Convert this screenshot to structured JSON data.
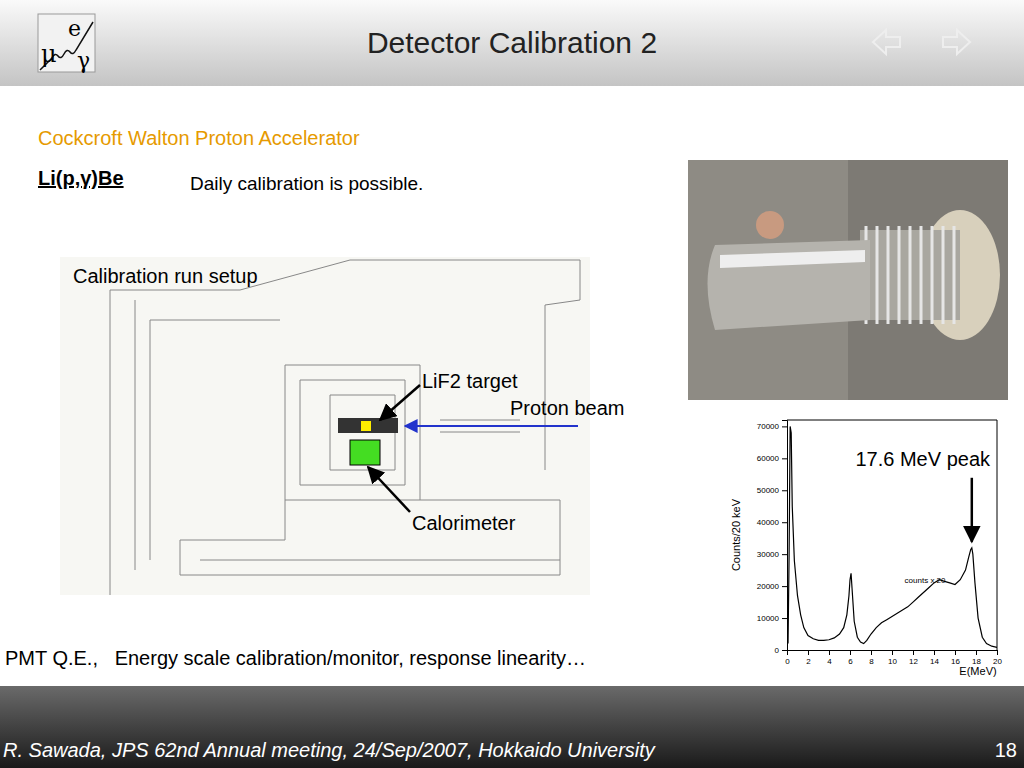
{
  "header": {
    "logo": [
      "μ",
      "e",
      "γ"
    ],
    "title": "Detector Calibration 2"
  },
  "subtitle": "Cockcroft Walton Proton Accelerator",
  "reaction": "Li(p,γ)Be",
  "note": "Daily calibration is possible.",
  "diagram": {
    "title": "Calibration run setup",
    "target": "LiF2 target",
    "beam": "Proton beam",
    "calorimeter": "Calorimeter"
  },
  "chart_data": {
    "type": "line",
    "color": "#000000",
    "x": [
      0.1,
      0.2,
      0.3,
      0.4,
      0.5,
      0.7,
      1.0,
      1.3,
      1.6,
      2.0,
      2.5,
      3.0,
      3.5,
      4.0,
      4.5,
      5.0,
      5.4,
      5.7,
      5.9,
      6.0,
      6.1,
      6.2,
      6.4,
      6.7,
      7.0,
      7.3,
      7.6,
      8.0,
      8.5,
      9.0,
      9.5,
      10.0,
      10.5,
      11.0,
      11.5,
      12.0,
      12.5,
      13.0,
      13.5,
      14.0,
      14.5,
      15.0,
      15.5,
      16.0,
      16.5,
      17.0,
      17.3,
      17.5,
      17.6,
      17.7,
      17.9,
      18.2,
      18.6,
      19.0,
      19.5,
      20.0
    ],
    "values": [
      2000,
      30000,
      70000,
      68000,
      45000,
      28000,
      17000,
      11000,
      7000,
      4500,
      3500,
      3000,
      3000,
      3200,
      3800,
      5000,
      7000,
      11000,
      17000,
      22000,
      24000,
      19000,
      9000,
      4000,
      2500,
      2000,
      3000,
      5000,
      7000,
      8500,
      9500,
      10500,
      11500,
      12500,
      13500,
      15000,
      16500,
      18000,
      19500,
      21000,
      22000,
      21500,
      21000,
      20500,
      22000,
      25000,
      29000,
      31500,
      32000,
      30000,
      21000,
      10000,
      4000,
      2000,
      1200,
      800
    ],
    "xlim": [
      0,
      20
    ],
    "xticks": [
      0,
      2,
      4,
      6,
      8,
      10,
      12,
      14,
      16,
      18,
      20
    ],
    "ylim": [
      0,
      72000
    ],
    "yticks": [
      0,
      10000,
      20000,
      30000,
      40000,
      50000,
      60000,
      70000
    ],
    "x_label": "E(MeV)",
    "y_label": "Counts/20 keV",
    "annotations": [
      {
        "text": "17.6 MeV peak",
        "x": 17.6,
        "y": 32000
      },
      {
        "text": "counts x 20",
        "x": 11.2,
        "y": 21000
      }
    ]
  },
  "bottom_text": "PMT Q.E.,   Energy scale calibration/monitor, response linearity…",
  "footer": {
    "citation": "R. Sawada, JPS 62nd Annual meeting, 24/Sep/2007, Hokkaido University",
    "page": 18
  }
}
